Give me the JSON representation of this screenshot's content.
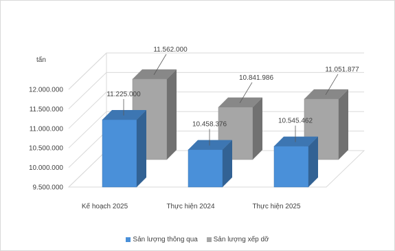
{
  "chart_data": {
    "type": "bar",
    "style": "3d-clustered-column",
    "unit_label": "tấn",
    "categories": [
      "Kế hoạch 2025",
      "Thực hiện 2024",
      "Thực hiện 2025"
    ],
    "series": [
      {
        "name": "Sản lượng thông qua",
        "color": "#4a90d9",
        "values": [
          11225000,
          10458376,
          10545462
        ],
        "labels": [
          "11.225.000",
          "10.458.376",
          "10.545.462"
        ]
      },
      {
        "name": "Sản lượng xếp dỡ",
        "color": "#a6a6a6",
        "values": [
          11562000,
          10841986,
          11051877
        ],
        "labels": [
          "11.562.000",
          "10.841.986",
          "11.051.877"
        ]
      }
    ],
    "ylim": [
      9500000,
      12000000
    ],
    "yticks": [
      "9.500.000",
      "10.000.000",
      "10.500.000",
      "11.000.000",
      "11.500.000",
      "12.000.000"
    ],
    "grid": true,
    "legend_position": "bottom"
  }
}
